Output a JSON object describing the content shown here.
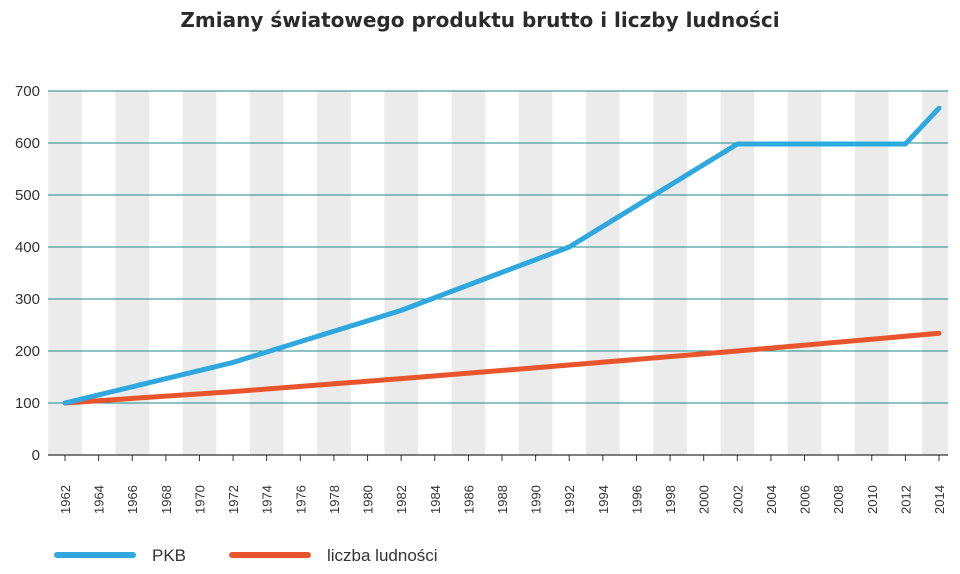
{
  "chart_data": {
    "type": "line",
    "title": "Zmiany światowego produktu brutto i liczby ludności",
    "xlabel": "",
    "ylabel": "",
    "ylim": [
      0,
      700
    ],
    "yticks": [
      0,
      100,
      200,
      300,
      400,
      500,
      600,
      700
    ],
    "xlim": [
      1962,
      2014
    ],
    "xticks": [
      1962,
      1964,
      1966,
      1968,
      1970,
      1972,
      1974,
      1976,
      1978,
      1980,
      1982,
      1984,
      1986,
      1988,
      1990,
      1992,
      1994,
      1996,
      1998,
      2000,
      2002,
      2004,
      2006,
      2008,
      2010,
      2012,
      2014
    ],
    "grid": "horizontal",
    "background_bands": "alternating grey vertical bands",
    "legend_position": "bottom-left",
    "series": [
      {
        "name": "PKB",
        "color": "#2ea8df",
        "x": [
          1962,
          1972,
          1982,
          1992,
          2002,
          2012,
          2014
        ],
        "y": [
          100,
          178,
          278,
          400,
          598,
          598,
          667
        ]
      },
      {
        "name": "liczba ludności",
        "color": "#e8552d",
        "x": [
          1962,
          1972,
          1982,
          1992,
          2002,
          2014
        ],
        "y": [
          100,
          122,
          147,
          173,
          200,
          234
        ]
      }
    ]
  }
}
